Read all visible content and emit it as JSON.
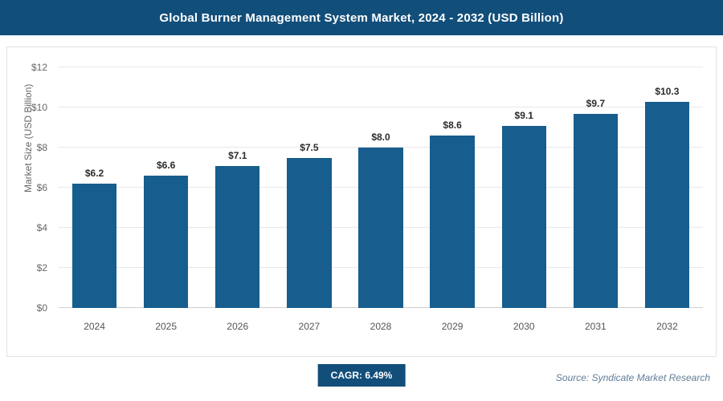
{
  "header": {
    "title": "Global Burner Management System Market, 2024 - 2032 (USD Billion)"
  },
  "chart_data": {
    "type": "bar",
    "title": "Global Burner Management System Market, 2024 - 2032 (USD Billion)",
    "categories": [
      "2024",
      "2025",
      "2026",
      "2027",
      "2028",
      "2029",
      "2030",
      "2031",
      "2032"
    ],
    "values": [
      6.2,
      6.6,
      7.1,
      7.5,
      8.0,
      8.6,
      9.1,
      9.7,
      10.3
    ],
    "value_labels": [
      "$6.2",
      "$6.6",
      "$7.1",
      "$7.5",
      "$8.0",
      "$8.6",
      "$9.1",
      "$9.7",
      "$10.3"
    ],
    "xlabel": "",
    "ylabel": "Market Size (USD Billion)",
    "ylim": [
      0,
      12
    ],
    "yticks": [
      0,
      2,
      4,
      6,
      8,
      10,
      12
    ],
    "ytick_labels": [
      "$0",
      "$2",
      "$4",
      "$6",
      "$8",
      "$10",
      "$12"
    ],
    "grid": "horizontal",
    "legend": "none",
    "bar_color": "#175d8d"
  },
  "footer": {
    "cagr_label": "CAGR: 6.49%",
    "source": "Source: Syndicate Market Research"
  },
  "colors": {
    "header_bg": "#124e7a",
    "bar": "#175d8d",
    "badge_bg": "#124e7a",
    "gridline": "#e8e8e8",
    "source_text": "#5f7d99"
  }
}
